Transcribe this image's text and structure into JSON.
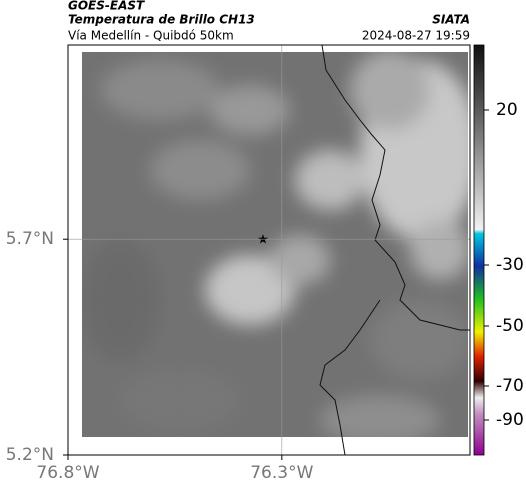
{
  "header": {
    "title": "GOES-EAST",
    "subtitle": "Temperatura de Brillo CH13",
    "region": "Vía Medellín - Quibdó 50km",
    "source": "SIATA",
    "timestamp": "2024-08-27 19:59"
  },
  "map": {
    "xlim": [
      -76.8,
      -75.86
    ],
    "ylim": [
      5.2,
      6.15
    ],
    "xticks": [
      {
        "value": -76.8,
        "label": "76.8°W"
      },
      {
        "value": -76.3,
        "label": "76.3°W"
      }
    ],
    "yticks": [
      {
        "value": 5.2,
        "label": "5.2°N"
      },
      {
        "value": 5.7,
        "label": "5.7°N"
      }
    ]
  },
  "colorbar": {
    "ticks": [
      20,
      -30,
      -50,
      -70,
      -90
    ]
  }
}
